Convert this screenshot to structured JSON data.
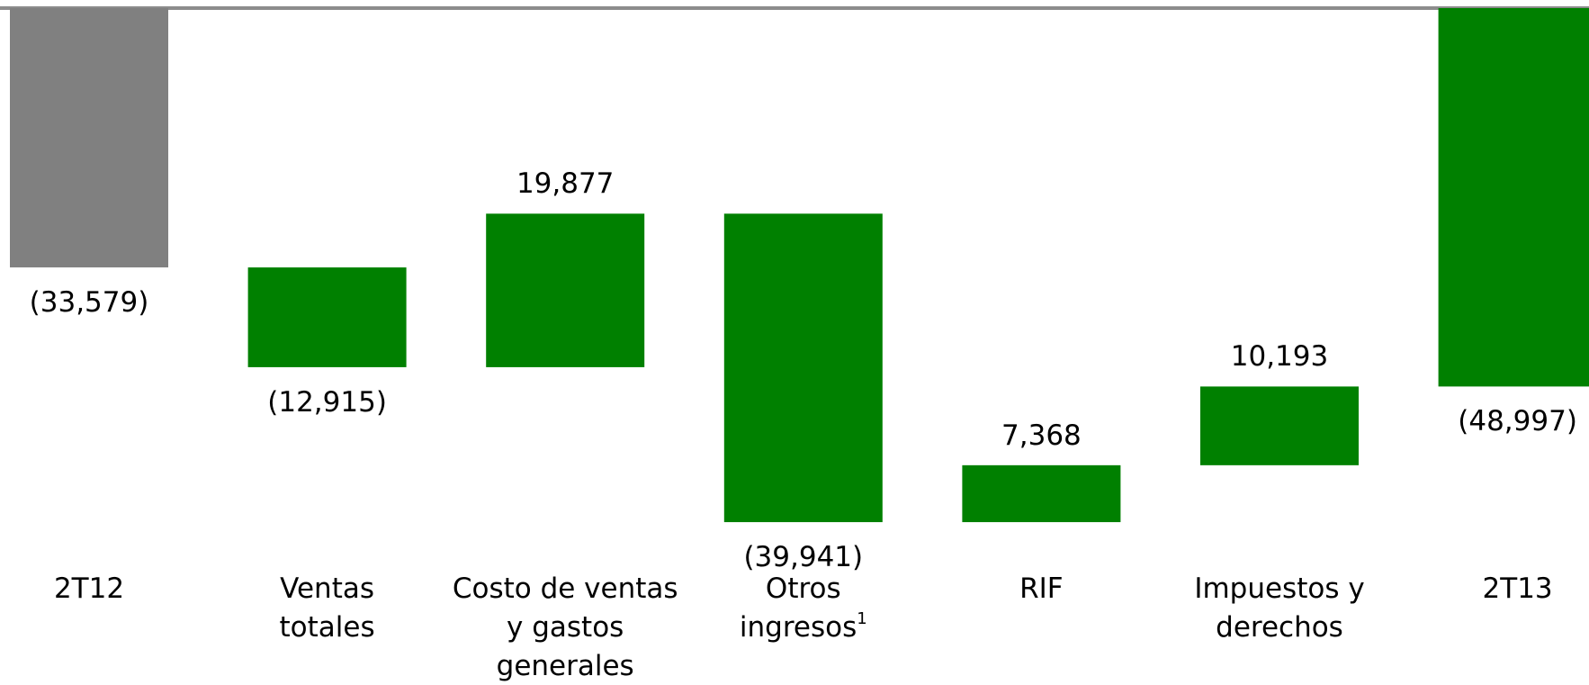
{
  "chart_data": {
    "type": "waterfall",
    "categories": [
      "2T12",
      "Ventas\ntotales",
      "Costo de ventas\ny gastos\ngenerales",
      "Otros\ningresos",
      "RIF",
      "Impuestos y\nderechos",
      "2T13"
    ],
    "category_notes": [
      null,
      null,
      null,
      "1",
      null,
      null,
      null
    ],
    "values": [
      -33579,
      -12915,
      19877,
      -39941,
      7368,
      10193,
      -48997
    ],
    "value_labels": [
      "(33,579)",
      "(12,915)",
      "19,877",
      "(39,941)",
      "7,368",
      "10,193",
      "(48,997)"
    ],
    "totals": [
      true,
      false,
      false,
      false,
      false,
      false,
      true
    ],
    "colors": [
      "#808080",
      "#008000",
      "#008000",
      "#008000",
      "#008000",
      "#008000",
      "#008000"
    ],
    "ylim": [
      -70000,
      0
    ]
  }
}
